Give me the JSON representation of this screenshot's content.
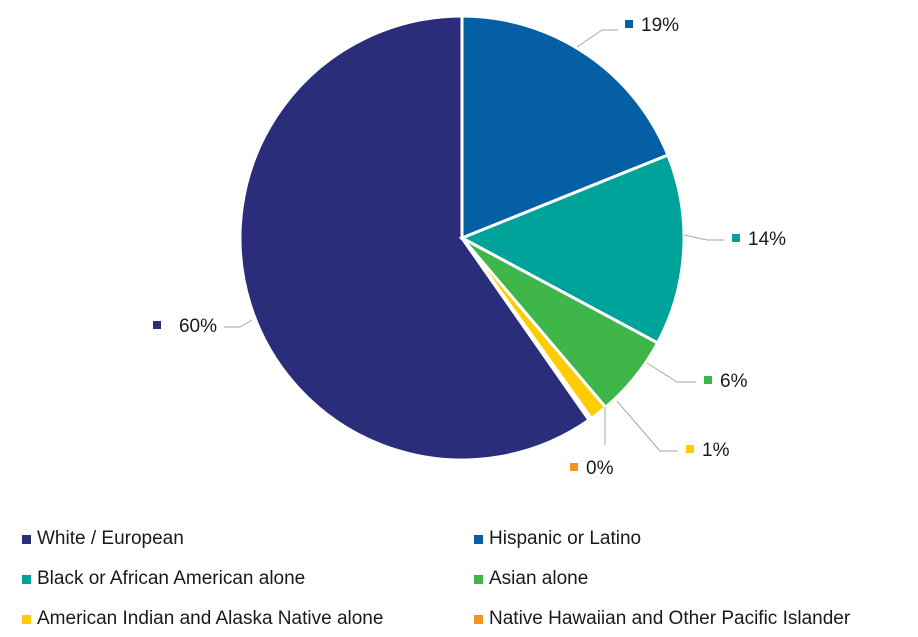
{
  "chart_data": {
    "type": "pie",
    "title": "",
    "slices": [
      {
        "name": "White / European",
        "value": 60,
        "label": "60%",
        "color": "#2a2e7a"
      },
      {
        "name": "Hispanic or Latino",
        "value": 19,
        "label": "19%",
        "color": "#045fa5"
      },
      {
        "name": "Black or African American alone",
        "value": 14,
        "label": "14%",
        "color": "#00a39a"
      },
      {
        "name": "Asian alone",
        "value": 6,
        "label": "6%",
        "color": "#3eb64a"
      },
      {
        "name": "American Indian and Alaska Native alone",
        "value": 1.3,
        "label": "1%",
        "color": "#ffcc00"
      },
      {
        "name": "Native Hawaiian and Other Pacific Islander",
        "value": 0.2,
        "label": "0%",
        "color": "#f7941d"
      }
    ],
    "legend_position": "bottom"
  }
}
